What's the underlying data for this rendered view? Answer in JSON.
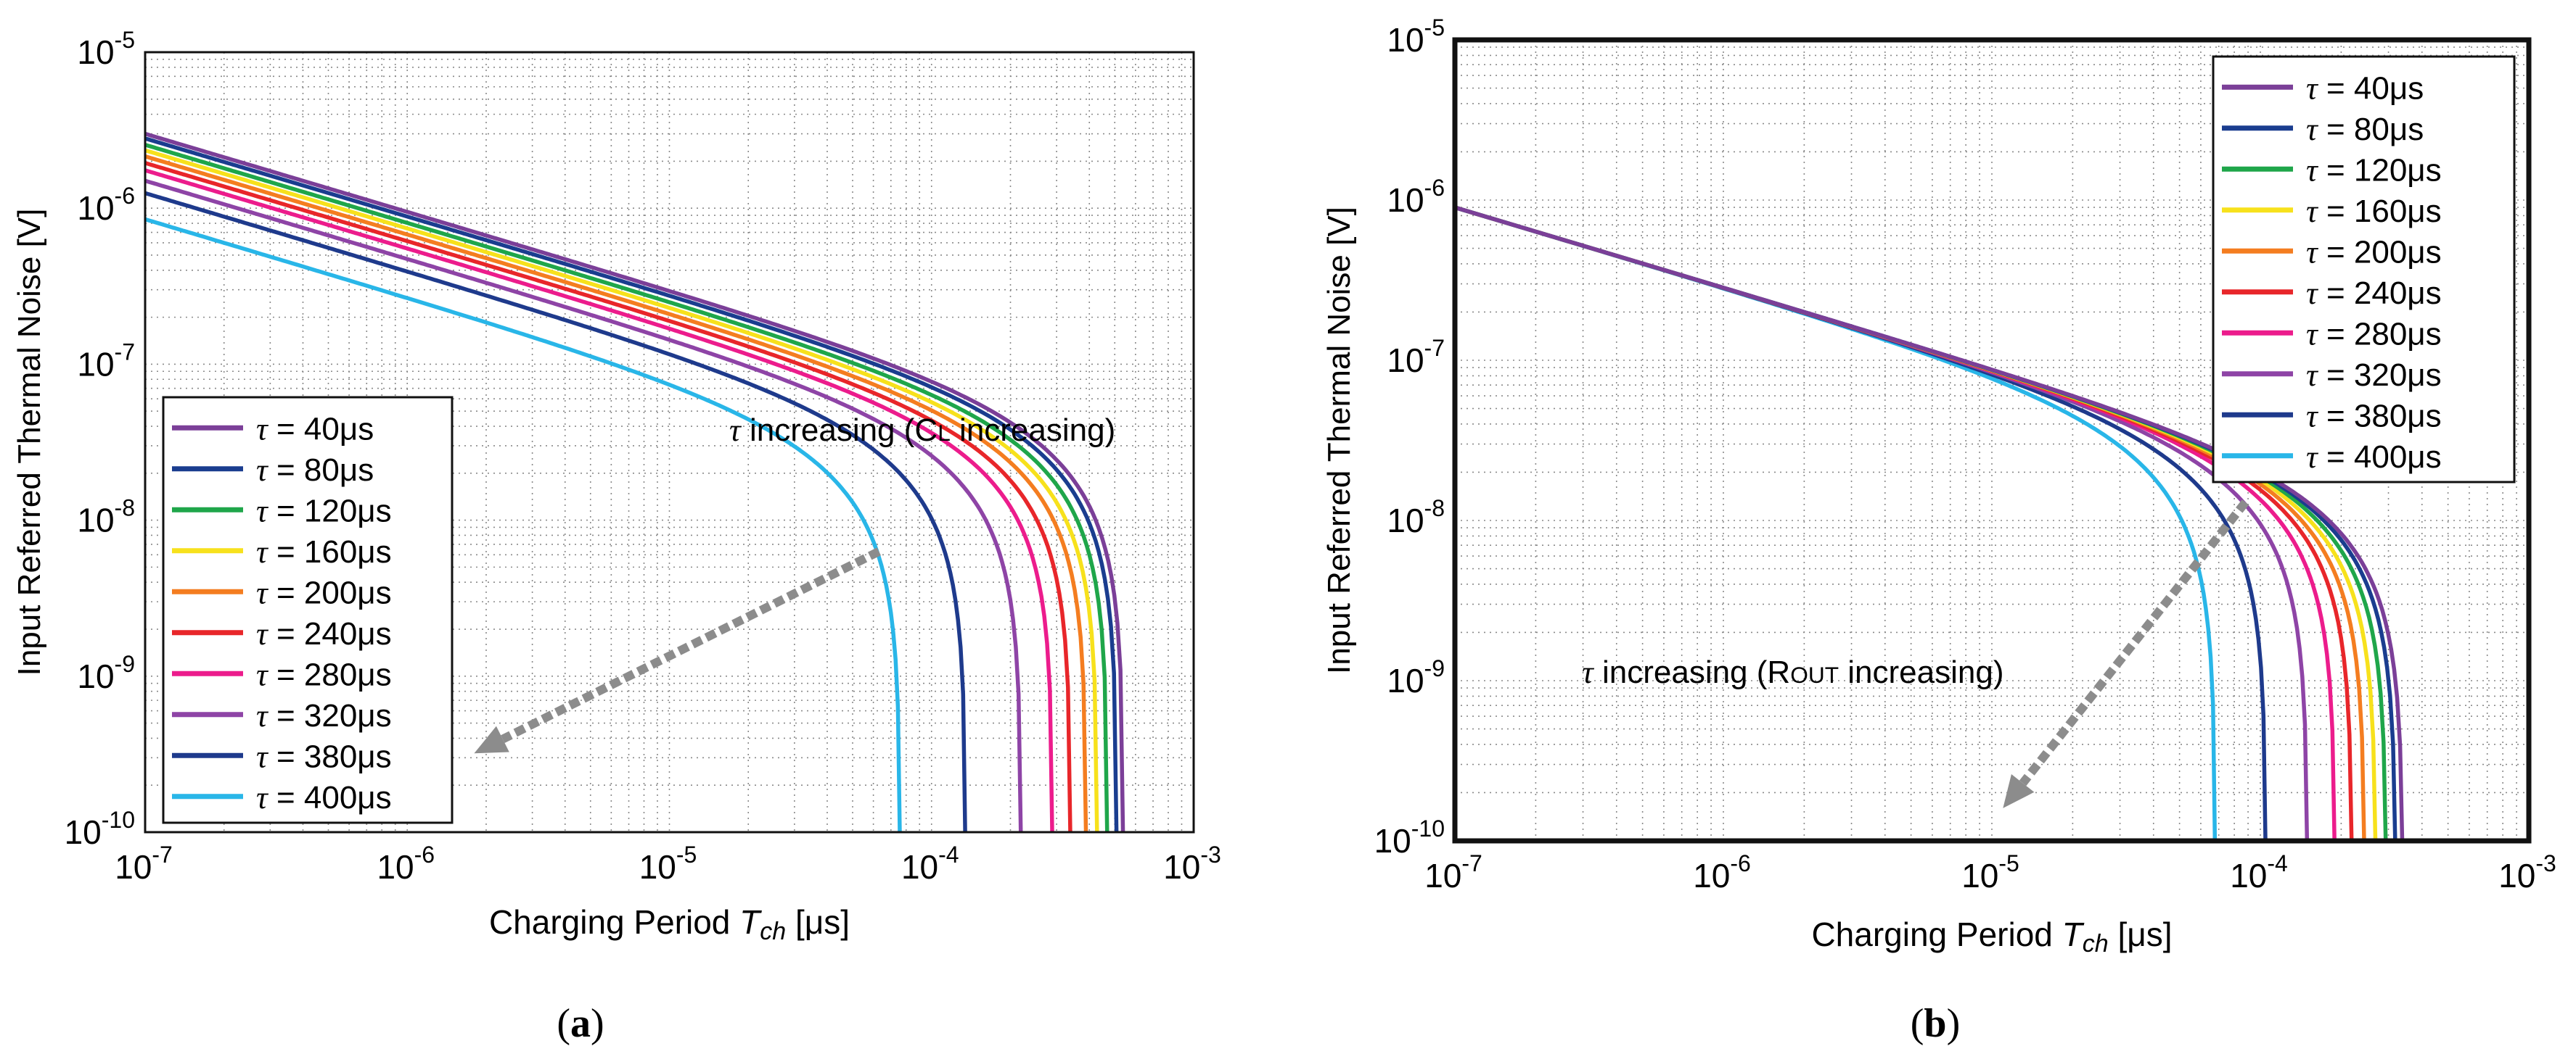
{
  "chart_data": [
    {
      "panel": "a",
      "panel_label": "a",
      "type": "line",
      "scale": "log-log",
      "xlabel_prefix": "Charging Period ",
      "xlabel_symbol": "T",
      "xlabel_sub": "ch",
      "xlabel_unit": " [μs]",
      "ylabel": "Input Referred Thermal Noise [V]",
      "xlim": [
        1e-07,
        0.001
      ],
      "ylim": [
        1e-10,
        1e-05
      ],
      "x_ticks": [
        {
          "base": "10",
          "exp": "-7",
          "value": 1e-07
        },
        {
          "base": "10",
          "exp": "-6",
          "value": 1e-06
        },
        {
          "base": "10",
          "exp": "-5",
          "value": 1e-05
        },
        {
          "base": "10",
          "exp": "-4",
          "value": 0.0001
        },
        {
          "base": "10",
          "exp": "-3",
          "value": 0.001
        }
      ],
      "y_ticks": [
        {
          "base": "10",
          "exp": "-10",
          "value": 1e-10
        },
        {
          "base": "10",
          "exp": "-9",
          "value": 1e-09
        },
        {
          "base": "10",
          "exp": "-8",
          "value": 1e-08
        },
        {
          "base": "10",
          "exp": "-7",
          "value": 1e-07
        },
        {
          "base": "10",
          "exp": "-6",
          "value": 1e-06
        },
        {
          "base": "10",
          "exp": "-5",
          "value": 1e-05
        }
      ],
      "grid": true,
      "legend_position": "bottom-left",
      "annotation": {
        "tau": "τ",
        "text_a": " increasing (C",
        "sub": "L",
        "text_b": " increasing)"
      },
      "arrow": {
        "from": [
          6.3e-05,
          6.3e-09
        ],
        "to": [
          1.8e-06,
          3.2e-10
        ]
      },
      "series": [
        {
          "name": "τ = 40μs",
          "color": "#7b3f98",
          "y_at_1e-7": 3e-06,
          "x_end": 0.00054
        },
        {
          "name": "τ = 80μs",
          "color": "#1a3d8f",
          "y_at_1e-7": 2.8e-06,
          "x_end": 0.00051
        },
        {
          "name": "τ = 120μs",
          "color": "#1fa64a",
          "y_at_1e-7": 2.55e-06,
          "x_end": 0.00047
        },
        {
          "name": "τ = 160μs",
          "color": "#f7e11c",
          "y_at_1e-7": 2.35e-06,
          "x_end": 0.00043
        },
        {
          "name": "τ = 200μs",
          "color": "#f47d20",
          "y_at_1e-7": 2.15e-06,
          "x_end": 0.00039
        },
        {
          "name": "τ = 240μs",
          "color": "#e8262a",
          "y_at_1e-7": 1.95e-06,
          "x_end": 0.00034
        },
        {
          "name": "τ = 280μs",
          "color": "#ec1c8c",
          "y_at_1e-7": 1.75e-06,
          "x_end": 0.00029
        },
        {
          "name": "τ = 320μs",
          "color": "#8e44a6",
          "y_at_1e-7": 1.5e-06,
          "x_end": 0.00022
        },
        {
          "name": "τ = 380μs",
          "color": "#1e3a8c",
          "y_at_1e-7": 1.25e-06,
          "x_end": 0.000135
        },
        {
          "name": "τ = 400μs",
          "color": "#29b6e8",
          "y_at_1e-7": 8.5e-07,
          "x_end": 7.6e-05
        }
      ]
    },
    {
      "panel": "b",
      "panel_label": "b",
      "type": "line",
      "scale": "log-log",
      "xlabel_prefix": "Charging Period ",
      "xlabel_symbol": "T",
      "xlabel_sub": "ch",
      "xlabel_unit": " [μs]",
      "ylabel": "Input Referred Thermal Noise [V]",
      "xlim": [
        1e-07,
        0.001
      ],
      "ylim": [
        1e-10,
        1e-05
      ],
      "x_ticks": [
        {
          "base": "10",
          "exp": "-7",
          "value": 1e-07
        },
        {
          "base": "10",
          "exp": "-6",
          "value": 1e-06
        },
        {
          "base": "10",
          "exp": "-5",
          "value": 1e-05
        },
        {
          "base": "10",
          "exp": "-4",
          "value": 0.0001
        },
        {
          "base": "10",
          "exp": "-3",
          "value": 0.001
        }
      ],
      "y_ticks": [
        {
          "base": "10",
          "exp": "-10",
          "value": 1e-10
        },
        {
          "base": "10",
          "exp": "-9",
          "value": 1e-09
        },
        {
          "base": "10",
          "exp": "-8",
          "value": 1e-08
        },
        {
          "base": "10",
          "exp": "-7",
          "value": 1e-07
        },
        {
          "base": "10",
          "exp": "-6",
          "value": 1e-06
        },
        {
          "base": "10",
          "exp": "-5",
          "value": 1e-05
        }
      ],
      "grid": true,
      "legend_position": "top-right",
      "annotation": {
        "tau": "τ",
        "text_a": " increasing (R",
        "sub": "OUT",
        "text_b": " increasing)"
      },
      "arrow": {
        "from": [
          8.8e-05,
          1.3e-08
        ],
        "to": [
          1.1e-05,
          1.6e-10
        ]
      },
      "series": [
        {
          "name": "τ = 40μs",
          "color": "#7b3f98",
          "y_at_1e-7": 9e-07,
          "x_end": 0.00034
        },
        {
          "name": "τ = 80μs",
          "color": "#1a3d8f",
          "y_at_1e-7": 9e-07,
          "x_end": 0.00032
        },
        {
          "name": "τ = 120μs",
          "color": "#1fa64a",
          "y_at_1e-7": 9e-07,
          "x_end": 0.000295
        },
        {
          "name": "τ = 160μs",
          "color": "#f7e11c",
          "y_at_1e-7": 9e-07,
          "x_end": 0.00027
        },
        {
          "name": "τ = 200μs",
          "color": "#f47d20",
          "y_at_1e-7": 9e-07,
          "x_end": 0.000245
        },
        {
          "name": "τ = 240μs",
          "color": "#e8262a",
          "y_at_1e-7": 9e-07,
          "x_end": 0.00022
        },
        {
          "name": "τ = 280μs",
          "color": "#ec1c8c",
          "y_at_1e-7": 9e-07,
          "x_end": 0.00019
        },
        {
          "name": "τ = 320μs",
          "color": "#8e44a6",
          "y_at_1e-7": 9e-07,
          "x_end": 0.00015
        },
        {
          "name": "τ = 380μs",
          "color": "#1e3a8c",
          "y_at_1e-7": 9e-07,
          "x_end": 0.000105
        },
        {
          "name": "τ = 400μs",
          "color": "#29b6e8",
          "y_at_1e-7": 9e-07,
          "x_end": 6.8e-05
        }
      ]
    }
  ]
}
